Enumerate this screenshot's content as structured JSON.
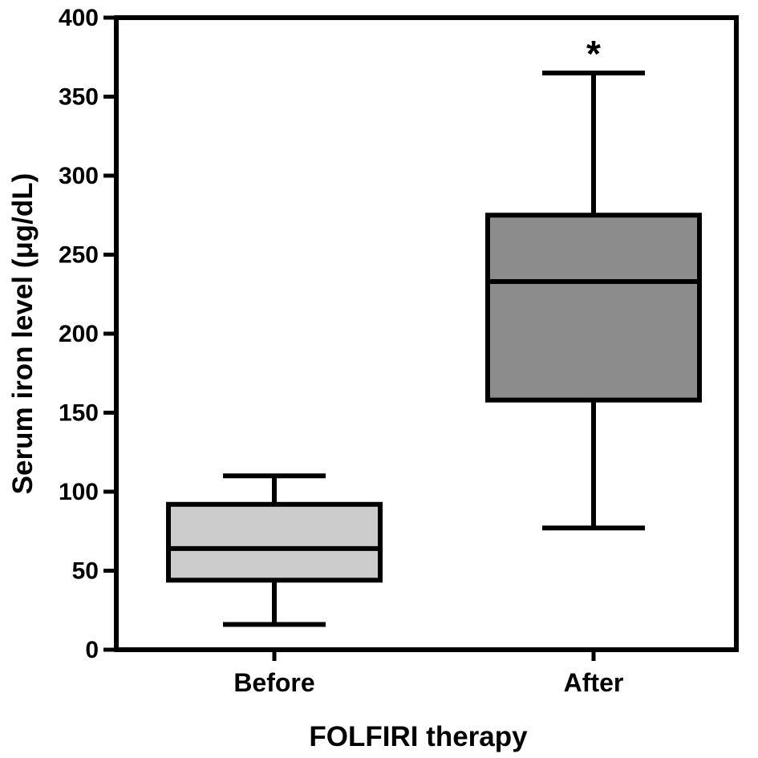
{
  "chart_data": {
    "type": "box",
    "title": "",
    "xlabel": "FOLFIRI therapy",
    "ylabel": "Serum iron level (μg/dL)",
    "ylim": [
      0,
      400
    ],
    "yticks": [
      0,
      50,
      100,
      150,
      200,
      250,
      300,
      350,
      400
    ],
    "yticklabels": [
      "0",
      "50",
      "100",
      "150",
      "200",
      "250",
      "300",
      "350",
      "400"
    ],
    "grid": false,
    "categories": [
      "Before",
      "After"
    ],
    "boxes": [
      {
        "category": "Before",
        "min": 16,
        "q1": 44,
        "median": 64,
        "q3": 92,
        "max": 110,
        "fill": "#cccccc"
      },
      {
        "category": "After",
        "min": 77,
        "q1": 158,
        "median": 233,
        "q3": 275,
        "max": 365,
        "fill": "#8c8c8c"
      }
    ],
    "annotations": [
      {
        "category": "After",
        "text": "*"
      }
    ]
  }
}
